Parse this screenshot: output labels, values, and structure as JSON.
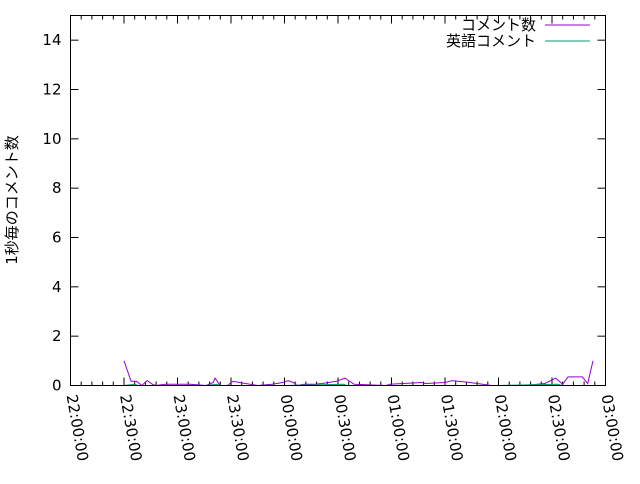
{
  "chart_data": {
    "type": "line",
    "title": "",
    "xlabel": "",
    "ylabel": "1秒毎のコメント数",
    "xlim": [
      "22:00:00",
      "03:00:00"
    ],
    "ylim": [
      0,
      15
    ],
    "x_ticks": [
      "22:00:00",
      "22:30:00",
      "23:00:00",
      "23:30:00",
      "00:00:00",
      "00:30:00",
      "01:00:00",
      "01:30:00",
      "02:00:00",
      "02:30:00",
      "03:00:00"
    ],
    "y_ticks": [
      0,
      2,
      4,
      6,
      8,
      10,
      12,
      14
    ],
    "grid": false,
    "legend": "top-right",
    "series": [
      {
        "name": "コメント数",
        "color": "#9400d3",
        "x": [
          "22:30:00",
          "22:34:00",
          "22:37:00",
          "22:40:00",
          "22:43:00",
          "22:46:00",
          "22:48:00",
          "22:53:00",
          "23:01:00",
          "23:07:00",
          "23:16:00",
          "23:20:00",
          "23:21:00",
          "23:24:00",
          "23:28:00",
          "23:31:00",
          "23:38:00",
          "23:45:00",
          "23:53:00",
          "23:59:00",
          "00:02:00",
          "00:05:00",
          "00:07:00",
          "00:11:00",
          "00:17:00",
          "00:21:00",
          "00:29:00",
          "00:34:00",
          "00:36:00",
          "00:39:00",
          "00:57:00",
          "00:59:00",
          "01:17:00",
          "01:19:00",
          "01:30:00",
          "01:34:00",
          "01:44:00",
          "01:56:00",
          "02:15:00",
          "02:26:00",
          "02:32:00",
          "02:36:00",
          "02:39:00",
          "02:47:00",
          "02:50:00",
          "02:53:00"
        ],
        "values": [
          1.0,
          0.17,
          0.17,
          0.0,
          0.2,
          0.05,
          0.0,
          0.05,
          0.05,
          0.05,
          0.0,
          0.12,
          0.3,
          0.0,
          0.0,
          0.17,
          0.08,
          0.0,
          0.05,
          0.12,
          0.2,
          0.12,
          0.0,
          0.05,
          0.05,
          0.08,
          0.17,
          0.3,
          0.2,
          0.05,
          0.0,
          0.05,
          0.12,
          0.08,
          0.12,
          0.2,
          0.12,
          0.0,
          0.0,
          0.08,
          0.3,
          0.05,
          0.35,
          0.35,
          0.08,
          1.0
        ]
      },
      {
        "name": "英語コメント",
        "color": "#009e73",
        "x": [
          "22:30:00",
          "22:36:00",
          "22:38:00",
          "22:45:00",
          "23:16:00",
          "23:22:00",
          "23:24:00",
          "00:00:00",
          "00:33:00",
          "00:35:00",
          "01:00:00",
          "01:30:00",
          "02:00:00",
          "02:33:00",
          "02:36:00",
          "02:53:00"
        ],
        "values": [
          0.0,
          0.05,
          0.0,
          0.0,
          0.0,
          0.05,
          0.0,
          0.0,
          0.05,
          0.0,
          0.0,
          0.0,
          0.0,
          0.05,
          0.0,
          0.0
        ]
      }
    ]
  }
}
